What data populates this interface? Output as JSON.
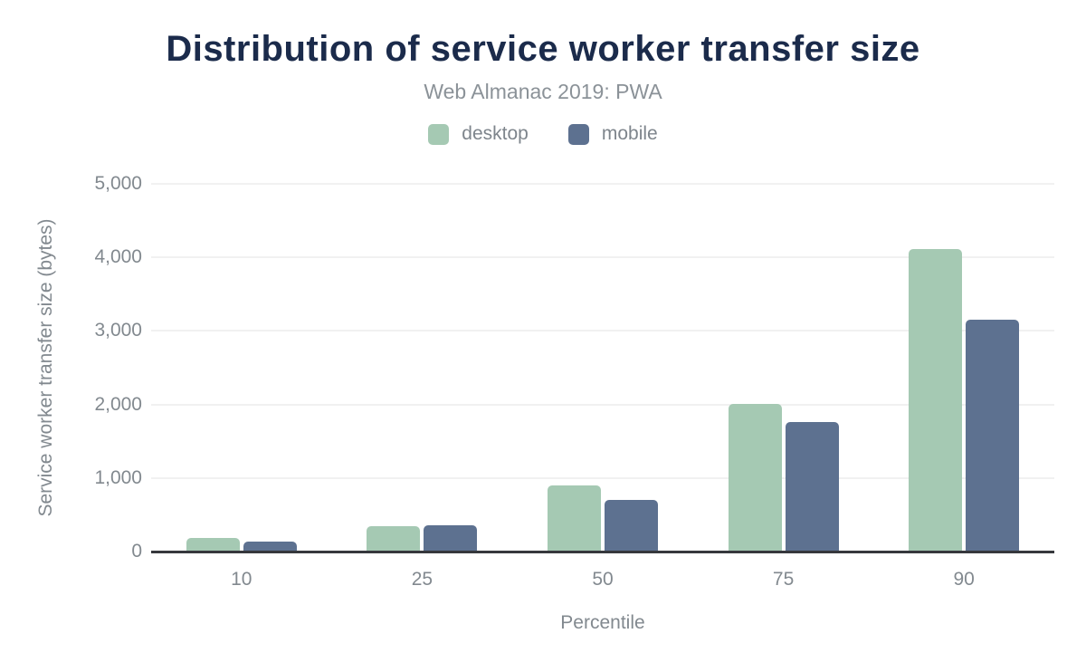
{
  "title": "Distribution of service worker transfer size",
  "subtitle": "Web Almanac 2019: PWA",
  "colors": {
    "title": "#1b2b4b",
    "label_gray": "#82898f",
    "gridline": "#f1f1f1",
    "axis_line": "#36383d",
    "desktop": "#a5c9b3",
    "mobile": "#5d7190",
    "background": "#ffffff"
  },
  "chart_data": {
    "type": "bar",
    "title": "Distribution of service worker transfer size",
    "subtitle": "Web Almanac 2019: PWA",
    "categories": [
      "10",
      "25",
      "50",
      "75",
      "90"
    ],
    "series": [
      {
        "name": "desktop",
        "color": "#a5c9b3",
        "values": [
          180,
          350,
          895,
          2010,
          4110
        ]
      },
      {
        "name": "mobile",
        "color": "#5d7190",
        "values": [
          135,
          356,
          700,
          1760,
          3155
        ]
      }
    ],
    "xlabel": "Percentile",
    "ylabel": "Service worker transfer size (bytes)",
    "ylim": [
      0,
      5000
    ],
    "ytick_interval": 1000,
    "ytick_labels": [
      "0",
      "1,000",
      "2,000",
      "3,000",
      "4,000",
      "5,000"
    ],
    "grid": true,
    "legend_position": "top",
    "bar_corner_radius": "rounded-top"
  }
}
